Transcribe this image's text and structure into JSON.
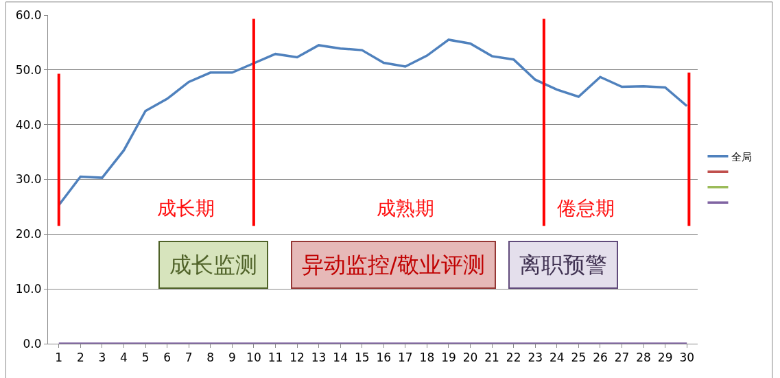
{
  "chart_data": {
    "type": "line",
    "x": [
      1,
      2,
      3,
      4,
      5,
      6,
      7,
      8,
      9,
      10,
      11,
      12,
      13,
      14,
      15,
      16,
      17,
      18,
      19,
      20,
      21,
      22,
      23,
      24,
      25,
      26,
      27,
      28,
      29,
      30
    ],
    "series": [
      {
        "name": "全局",
        "color": "#4f81bd",
        "values": [
          25.3,
          30.5,
          30.3,
          35.3,
          42.5,
          44.7,
          47.8,
          49.5,
          49.5,
          51.2,
          52.9,
          52.3,
          54.5,
          53.9,
          53.6,
          51.3,
          50.6,
          52.6,
          55.5,
          54.8,
          52.5,
          51.9,
          48.2,
          46.4,
          45.1,
          48.7,
          46.9,
          47.0,
          46.8,
          43.4
        ]
      },
      {
        "color": "#c0504d",
        "values": [
          null,
          null,
          null,
          null,
          null,
          null,
          null,
          null,
          null,
          null,
          null,
          null,
          null,
          null,
          null,
          null,
          null,
          null,
          null,
          null,
          null,
          null,
          null,
          null,
          null,
          null,
          null,
          null,
          null,
          null
        ]
      },
      {
        "color": "#9bbb59",
        "values": [
          null,
          null,
          null,
          null,
          null,
          null,
          null,
          null,
          null,
          null,
          null,
          null,
          null,
          null,
          null,
          null,
          null,
          null,
          null,
          null,
          null,
          null,
          null,
          null,
          null,
          null,
          null,
          null,
          null,
          null
        ]
      },
      {
        "color": "#8064a2",
        "values": [
          0,
          0,
          0,
          0,
          0,
          0,
          0,
          0,
          0,
          0,
          0,
          0,
          0,
          0,
          0,
          0,
          0,
          0,
          0,
          0,
          0,
          0,
          0,
          0,
          0,
          0,
          0,
          0,
          0,
          0
        ]
      },
      {
        "type": "line",
        "color": "#ff0000",
        "x": [
          1,
          1
        ],
        "values": [
          21.5,
          49.3
        ]
      },
      {
        "type": "line",
        "color": "#ff0000",
        "x": [
          10,
          10
        ],
        "values": [
          21.5,
          59.3
        ]
      },
      {
        "type": "line",
        "color": "#ff0000",
        "x": [
          23.4,
          23.4
        ],
        "values": [
          21.5,
          59.3
        ]
      },
      {
        "type": "line",
        "color": "#ff0000",
        "x": [
          30.1,
          30.1
        ],
        "values": [
          21.5,
          49.5
        ]
      }
    ],
    "xlim": [
      0.5,
      30.5
    ],
    "xticks": [
      1,
      2,
      3,
      4,
      5,
      6,
      7,
      8,
      9,
      10,
      11,
      12,
      13,
      14,
      15,
      16,
      17,
      18,
      19,
      20,
      21,
      22,
      23,
      24,
      25,
      26,
      27,
      28,
      29,
      30
    ],
    "ylim": [
      0,
      60
    ],
    "yticks": [
      {
        "value": 0,
        "label": "0.0"
      },
      {
        "value": 10,
        "label": "10.0"
      },
      {
        "value": 20,
        "label": "20.0"
      },
      {
        "value": 30,
        "label": "30.0"
      },
      {
        "value": 40,
        "label": "40.0"
      },
      {
        "value": 50,
        "label": "50.0"
      },
      {
        "value": 60,
        "label": "60.0"
      }
    ],
    "grid": "y",
    "legend": "right",
    "marker": "none",
    "line_style": "solid",
    "annotations": [
      "成长期",
      "成熟期",
      "倦怠期",
      "成长监测",
      "异动监控/敬业评测",
      "离职预警"
    ]
  }
}
